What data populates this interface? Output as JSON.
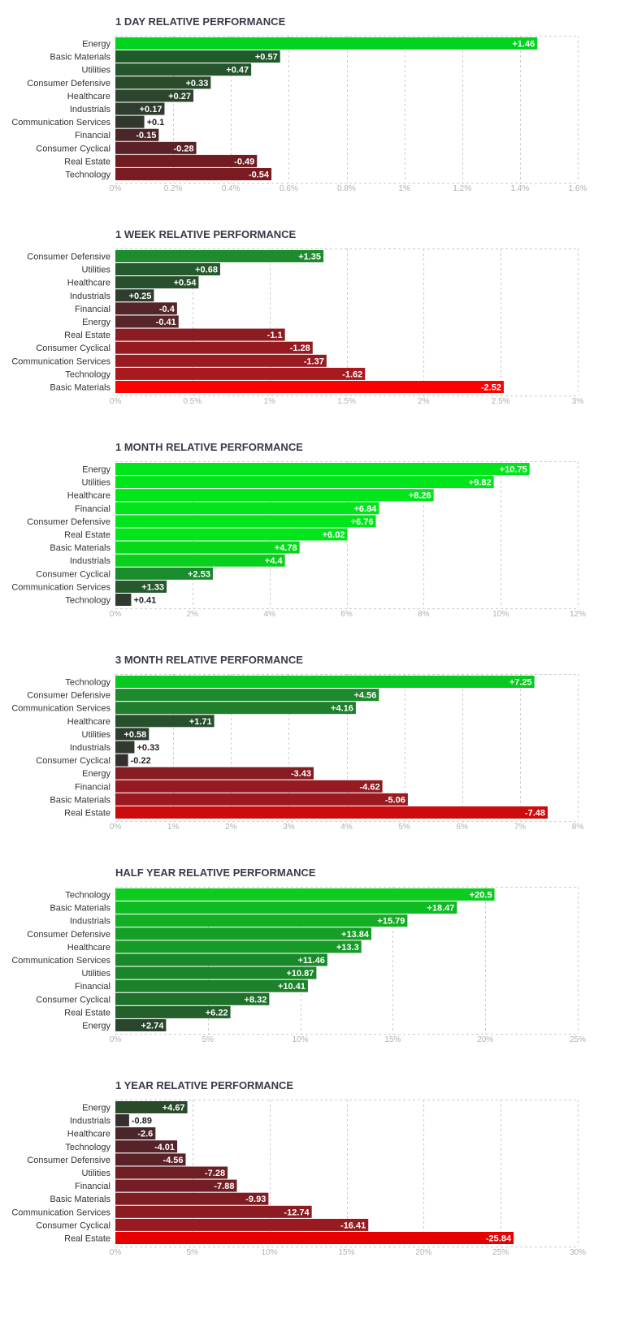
{
  "chart_data": [
    {
      "type": "bar",
      "title": "1 DAY RELATIVE PERFORMANCE",
      "categories": [
        "Energy",
        "Basic Materials",
        "Utilities",
        "Consumer Defensive",
        "Healthcare",
        "Industrials",
        "Communication Services",
        "Financial",
        "Consumer Cyclical",
        "Real Estate",
        "Technology"
      ],
      "values": [
        1.46,
        0.57,
        0.47,
        0.33,
        0.27,
        0.17,
        0.1,
        -0.15,
        -0.28,
        -0.49,
        -0.54
      ],
      "value_labels": [
        "+1.46",
        "+0.57",
        "+0.47",
        "+0.33",
        "+0.27",
        "+0.17",
        "+0.1",
        "-0.15",
        "-0.28",
        "-0.49",
        "-0.54"
      ],
      "xlim": [
        0,
        1.6
      ],
      "xticks": [
        0,
        0.2,
        0.4,
        0.6,
        0.8,
        1,
        1.2,
        1.4,
        1.6
      ],
      "xtick_labels": [
        "0%",
        "0.2%",
        "0.4%",
        "0.6%",
        "0.8%",
        "1%",
        "1.2%",
        "1.4%",
        "1.6%"
      ],
      "bar_colors": [
        "#00d41e",
        "#1f5b2a",
        "#26552b",
        "#2a4c2b",
        "#2d452c",
        "#2f3d2d",
        "#31372f",
        "#4a2629",
        "#5c2126",
        "#721c22",
        "#7a1b21"
      ],
      "grid": true,
      "orientation": "horizontal"
    },
    {
      "type": "bar",
      "title": "1 WEEK RELATIVE PERFORMANCE",
      "categories": [
        "Consumer Defensive",
        "Utilities",
        "Healthcare",
        "Industrials",
        "Financial",
        "Energy",
        "Real Estate",
        "Consumer Cyclical",
        "Communication Services",
        "Technology",
        "Basic Materials"
      ],
      "values": [
        1.35,
        0.68,
        0.54,
        0.25,
        -0.4,
        -0.41,
        -1.1,
        -1.28,
        -1.37,
        -1.62,
        -2.52
      ],
      "value_labels": [
        "+1.35",
        "+0.68",
        "+0.54",
        "+0.25",
        "-0.4",
        "-0.41",
        "-1.1",
        "-1.28",
        "-1.37",
        "-1.62",
        "-2.52"
      ],
      "xlim": [
        0,
        3
      ],
      "xticks": [
        0,
        0.5,
        1,
        1.5,
        2,
        2.5,
        3
      ],
      "xtick_labels": [
        "0%",
        "0.5%",
        "1%",
        "1.5%",
        "2%",
        "2.5%",
        "3%"
      ],
      "bar_colors": [
        "#1e8c2e",
        "#245a2c",
        "#27512c",
        "#2e3e2e",
        "#54262a",
        "#56262a",
        "#8a1c22",
        "#951b21",
        "#991b21",
        "#a81a20",
        "#ff0000"
      ],
      "grid": true,
      "orientation": "horizontal"
    },
    {
      "type": "bar",
      "title": "1 MONTH RELATIVE PERFORMANCE",
      "categories": [
        "Energy",
        "Utilities",
        "Healthcare",
        "Financial",
        "Consumer Defensive",
        "Real Estate",
        "Basic Materials",
        "Industrials",
        "Consumer Cyclical",
        "Communication Services",
        "Technology"
      ],
      "values": [
        10.75,
        9.82,
        8.26,
        6.84,
        6.76,
        6.02,
        4.78,
        4.4,
        2.53,
        1.33,
        0.41
      ],
      "value_labels": [
        "+10.75",
        "+9.82",
        "+8.26",
        "+6.84",
        "+6.76",
        "+6.02",
        "+4.78",
        "+4.4",
        "+2.53",
        "+1.33",
        "+0.41"
      ],
      "xlim": [
        0,
        12
      ],
      "xticks": [
        0,
        2,
        4,
        6,
        8,
        10,
        12
      ],
      "xtick_labels": [
        "0%",
        "2%",
        "4%",
        "6%",
        "8%",
        "10%",
        "12%"
      ],
      "bar_colors": [
        "#00e61a",
        "#00e61a",
        "#00e61a",
        "#00e61a",
        "#00e61a",
        "#00e61a",
        "#06d81c",
        "#08d01d",
        "#198c2c",
        "#255a2c",
        "#2f3b2e"
      ],
      "grid": true,
      "orientation": "horizontal"
    },
    {
      "type": "bar",
      "title": "3 MONTH RELATIVE PERFORMANCE",
      "categories": [
        "Technology",
        "Consumer Defensive",
        "Communication Services",
        "Healthcare",
        "Utilities",
        "Industrials",
        "Consumer Cyclical",
        "Energy",
        "Financial",
        "Basic Materials",
        "Real Estate"
      ],
      "values": [
        7.25,
        4.56,
        4.16,
        1.71,
        0.58,
        0.33,
        -0.22,
        -3.43,
        -4.62,
        -5.06,
        -7.48
      ],
      "value_labels": [
        "+7.25",
        "+4.56",
        "+4.16",
        "+1.71",
        "+0.58",
        "+0.33",
        "-0.22",
        "-3.43",
        "-4.62",
        "-5.06",
        "-7.48"
      ],
      "xlim": [
        0,
        8
      ],
      "xticks": [
        0,
        1,
        2,
        3,
        4,
        5,
        6,
        7,
        8
      ],
      "xtick_labels": [
        "0%",
        "1%",
        "2%",
        "3%",
        "4%",
        "5%",
        "6%",
        "7%",
        "8%"
      ],
      "bar_colors": [
        "#07c920",
        "#1e8a2e",
        "#1f7f2d",
        "#27502c",
        "#2d3e2e",
        "#303a2f",
        "#35302f",
        "#871c22",
        "#951b21",
        "#9b1a21",
        "#cc0c0c"
      ],
      "grid": true,
      "orientation": "horizontal"
    },
    {
      "type": "bar",
      "title": "HALF YEAR RELATIVE PERFORMANCE",
      "categories": [
        "Technology",
        "Basic Materials",
        "Industrials",
        "Consumer Defensive",
        "Healthcare",
        "Communication Services",
        "Utilities",
        "Financial",
        "Consumer Cyclical",
        "Real Estate",
        "Energy"
      ],
      "values": [
        20.5,
        18.47,
        15.79,
        13.84,
        13.3,
        11.46,
        10.87,
        10.41,
        8.32,
        6.22,
        2.74
      ],
      "value_labels": [
        "+20.5",
        "+18.47",
        "+15.79",
        "+13.84",
        "+13.3",
        "+11.46",
        "+10.87",
        "+10.41",
        "+8.32",
        "+6.22",
        "+2.74"
      ],
      "xlim": [
        0,
        25
      ],
      "xticks": [
        0,
        5,
        10,
        15,
        20,
        25
      ],
      "xtick_labels": [
        "0%",
        "5%",
        "10%",
        "15%",
        "20%",
        "25%"
      ],
      "bar_colors": [
        "#0ccc20",
        "#0fbb22",
        "#12ae24",
        "#159f27",
        "#169b27",
        "#198a29",
        "#1a862a",
        "#1b822a",
        "#1f722b",
        "#24602c",
        "#2a462c"
      ],
      "grid": true,
      "orientation": "horizontal"
    },
    {
      "type": "bar",
      "title": "1 YEAR RELATIVE PERFORMANCE",
      "categories": [
        "Energy",
        "Industrials",
        "Healthcare",
        "Technology",
        "Consumer Defensive",
        "Utilities",
        "Financial",
        "Basic Materials",
        "Communication Services",
        "Consumer Cyclical",
        "Real Estate"
      ],
      "values": [
        4.67,
        -0.89,
        -2.6,
        -4.01,
        -4.56,
        -7.28,
        -7.88,
        -9.93,
        -12.74,
        -16.41,
        -25.84
      ],
      "value_labels": [
        "+4.67",
        "-0.89",
        "-2.6",
        "-4.01",
        "-4.56",
        "-7.28",
        "-7.88",
        "-9.93",
        "-12.74",
        "-16.41",
        "-25.84"
      ],
      "xlim": [
        0,
        30
      ],
      "xticks": [
        0,
        5,
        10,
        15,
        20,
        25,
        30
      ],
      "xtick_labels": [
        "0%",
        "5%",
        "10%",
        "15%",
        "20%",
        "25%",
        "30%"
      ],
      "bar_colors": [
        "#2a4a2c",
        "#35302f",
        "#4a2529",
        "#552328",
        "#5a2227",
        "#6d1f24",
        "#721e24",
        "#7f1d23",
        "#8c1c22",
        "#991b21",
        "#e60000"
      ],
      "grid": true,
      "orientation": "horizontal"
    }
  ]
}
